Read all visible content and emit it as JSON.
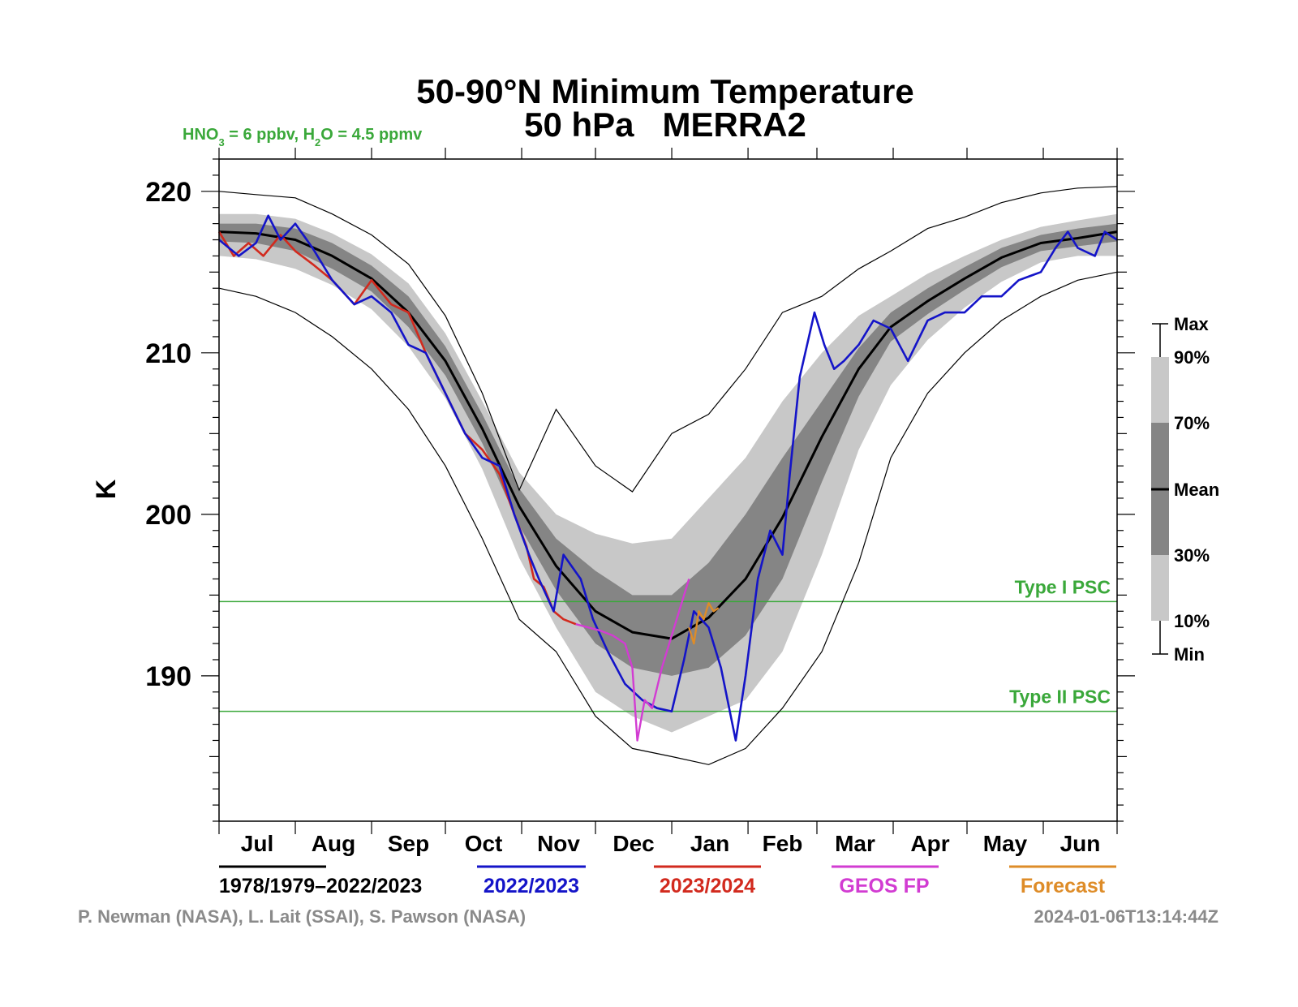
{
  "chart_data": {
    "type": "line",
    "title": "50-90°N Minimum Temperature",
    "subtitle": "50 hPa   MERRA2",
    "chemistry": {
      "hno3_label": "HNO",
      "hno3_sub": "3",
      "hno3_value": " = 6 ppbv, H",
      "h2o_sub": "2",
      "h2o_value": "O = 4.5 ppmv"
    },
    "ylabel": "K",
    "ylim": [
      181,
      222
    ],
    "yticks": [
      "220",
      "210",
      "200",
      "190"
    ],
    "ytick_values": [
      220,
      210,
      200,
      190
    ],
    "months": [
      "Jul",
      "Aug",
      "Sep",
      "Oct",
      "Nov",
      "Dec",
      "Jan",
      "Feb",
      "Mar",
      "Apr",
      "May",
      "Jun"
    ],
    "x_unit": "day of season (Jul 1 = 0)",
    "xlim": [
      0,
      365
    ],
    "psc_thresholds": [
      {
        "name": "Type I PSC",
        "value": 194.6
      },
      {
        "name": "Type II PSC",
        "value": 187.8
      }
    ],
    "percentile_key": {
      "labels": [
        "Max",
        "90%",
        "70%",
        "Mean",
        "30%",
        "10%",
        "Min"
      ]
    },
    "climatology_x": [
      0,
      15,
      31,
      46,
      62,
      77,
      92,
      107,
      122,
      137,
      153,
      168,
      184,
      199,
      214,
      229,
      245,
      260,
      273,
      288,
      303,
      318,
      334,
      349,
      365
    ],
    "series": [
      {
        "name": "1978/1979–2022/2023",
        "role": "mean",
        "values": [
          217.5,
          217.4,
          217.0,
          216.0,
          214.6,
          212.5,
          209.5,
          205.3,
          200.5,
          196.8,
          194.0,
          192.7,
          192.3,
          193.6,
          196.0,
          199.8,
          204.8,
          209.0,
          211.6,
          213.2,
          214.6,
          215.9,
          216.8,
          217.1,
          217.5
        ]
      },
      {
        "name": "Max",
        "role": "band",
        "values": [
          220.0,
          219.8,
          219.6,
          218.6,
          217.3,
          215.5,
          212.3,
          207.5,
          201.5,
          206.5,
          203.0,
          201.4,
          205.0,
          206.2,
          209.0,
          212.5,
          213.5,
          215.2,
          216.3,
          217.7,
          218.4,
          219.3,
          219.9,
          220.2,
          220.3
        ]
      },
      {
        "name": "90%",
        "role": "band",
        "values": [
          218.6,
          218.6,
          218.3,
          217.4,
          216.1,
          214.3,
          211.2,
          207.0,
          202.6,
          200.0,
          198.8,
          198.2,
          198.5,
          201.0,
          203.5,
          207.0,
          210.0,
          212.3,
          213.5,
          214.9,
          216.0,
          217.0,
          217.8,
          218.2,
          218.6
        ]
      },
      {
        "name": "70%",
        "role": "band",
        "values": [
          218.0,
          218.0,
          217.7,
          216.8,
          215.4,
          213.5,
          210.4,
          206.2,
          201.6,
          198.5,
          196.5,
          195.0,
          195.0,
          197.0,
          200.0,
          203.5,
          207.0,
          210.3,
          212.5,
          214.0,
          215.3,
          216.5,
          217.3,
          217.7,
          218.0
        ]
      },
      {
        "name": "30%",
        "role": "band",
        "values": [
          216.9,
          216.8,
          216.3,
          215.2,
          213.8,
          211.6,
          208.6,
          204.4,
          199.3,
          195.3,
          192.0,
          190.5,
          190.0,
          190.5,
          192.5,
          196.0,
          202.0,
          207.3,
          210.7,
          212.4,
          213.9,
          215.3,
          216.3,
          216.6,
          216.9
        ]
      },
      {
        "name": "10%",
        "role": "band",
        "values": [
          216.0,
          215.8,
          215.2,
          214.2,
          212.7,
          210.4,
          207.2,
          202.8,
          197.3,
          193.0,
          189.0,
          187.5,
          186.5,
          187.5,
          188.5,
          191.5,
          197.5,
          204.0,
          208.0,
          210.8,
          212.8,
          214.4,
          215.6,
          216.0,
          216.0
        ]
      },
      {
        "name": "Min",
        "role": "band",
        "values": [
          214.0,
          213.5,
          212.5,
          211.0,
          209.0,
          206.5,
          203.0,
          198.5,
          193.5,
          191.5,
          187.5,
          185.5,
          185.0,
          184.5,
          185.5,
          188.0,
          191.5,
          197.0,
          203.5,
          207.5,
          210.0,
          212.0,
          213.5,
          214.5,
          215.0
        ]
      },
      {
        "name": "2022/2023",
        "role": "year",
        "x": [
          0,
          8,
          15,
          20,
          25,
          31,
          38,
          46,
          55,
          62,
          70,
          77,
          84,
          92,
          100,
          107,
          114,
          120,
          126,
          130,
          136,
          140,
          147,
          152,
          158,
          165,
          172,
          178,
          184,
          189,
          193,
          199,
          204,
          210,
          214,
          219,
          224,
          229,
          232,
          236,
          242,
          246,
          250,
          254,
          260,
          266,
          273,
          280,
          288,
          295,
          303,
          310,
          318,
          325,
          334,
          340,
          345,
          349,
          356,
          360,
          365
        ],
        "values": [
          217.0,
          216.0,
          216.8,
          218.5,
          217.0,
          218.0,
          216.5,
          214.5,
          213.0,
          213.5,
          212.5,
          210.5,
          210.0,
          207.5,
          205.0,
          203.5,
          203.0,
          200.0,
          197.5,
          196.0,
          194.0,
          197.5,
          196.0,
          193.5,
          191.5,
          189.5,
          188.5,
          188.0,
          187.8,
          191.0,
          194.0,
          193.0,
          190.5,
          186.0,
          190.0,
          196.0,
          199.0,
          197.5,
          202.5,
          208.5,
          212.5,
          210.5,
          209.0,
          209.5,
          210.5,
          212.0,
          211.5,
          209.5,
          212.0,
          212.5,
          212.5,
          213.5,
          213.5,
          214.5,
          215.0,
          216.5,
          217.5,
          216.5,
          216.0,
          217.5,
          217.0
        ]
      },
      {
        "name": "2023/2024",
        "role": "year",
        "x": [
          0,
          6,
          12,
          18,
          25,
          31,
          38,
          46,
          55,
          62,
          70,
          77,
          84,
          92,
          100,
          107,
          114,
          120,
          125,
          128,
          132,
          136,
          140,
          145
        ],
        "values": [
          217.5,
          216.0,
          216.8,
          216.0,
          217.3,
          216.3,
          215.5,
          214.5,
          213.0,
          214.5,
          213.0,
          212.5,
          210.0,
          207.5,
          205.0,
          204.0,
          202.5,
          200.0,
          198.0,
          196.0,
          195.5,
          194.0,
          193.5,
          193.2
        ]
      },
      {
        "name": "GEOS FP",
        "role": "year",
        "x": [
          145,
          150,
          155,
          160,
          165,
          168,
          170,
          173,
          176,
          180,
          184,
          188,
          191
        ],
        "values": [
          193.2,
          193.0,
          192.8,
          192.5,
          192.0,
          190.5,
          186.0,
          188.5,
          188.0,
          190.5,
          192.5,
          194.5,
          196.0
        ]
      },
      {
        "name": "Forecast",
        "role": "year",
        "x": [
          191,
          193,
          195,
          197,
          199,
          201,
          203
        ],
        "values": [
          193.0,
          192.0,
          194.0,
          193.5,
          194.5,
          194.0,
          194.2
        ]
      }
    ],
    "grid": false,
    "legend_position": "bottom"
  },
  "legend": {
    "mean": "1978/1979–2022/2023",
    "y2022": "2022/2023",
    "y2023": "2023/2024",
    "geos": "GEOS FP",
    "forecast": "Forecast"
  },
  "colors": {
    "mean": "#000000",
    "y2022": "#1414c8",
    "y2023": "#d22a1e",
    "geos": "#d23cd2",
    "forecast": "#de8c28",
    "psc": "#3aa83a",
    "band_outer": "#c8c8c8",
    "band_inner": "#858585"
  },
  "credits": {
    "authors": "P. Newman (NASA), L. Lait (SSAI), S. Pawson (NASA)",
    "timestamp": "2024-01-06T13:14:44Z"
  }
}
